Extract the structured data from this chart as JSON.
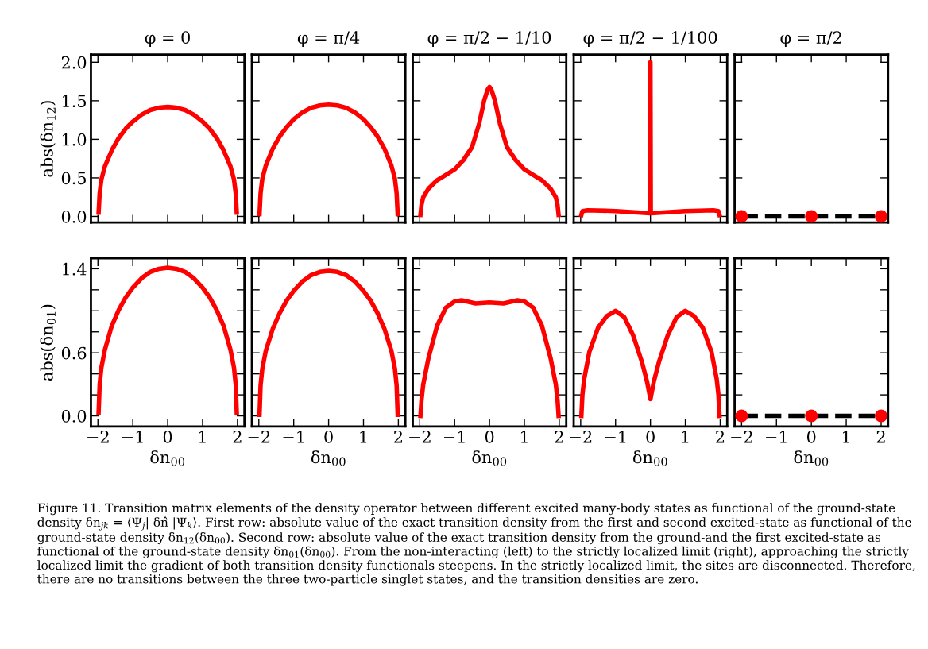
{
  "chart_data": [
    {
      "type": "line",
      "title": "φ = 0",
      "ylabel": "abs(δn$_{12}$)",
      "xlim": [
        -2.2,
        2.2
      ],
      "ylim": [
        -0.08,
        2.1
      ],
      "xticks": [
        {
          "value": -2,
          "label": null
        },
        {
          "value": -1,
          "label": null
        },
        {
          "value": 0,
          "label": null
        },
        {
          "value": 1,
          "label": null
        },
        {
          "value": 2,
          "label": null
        }
      ],
      "yticks": [
        {
          "value": 0,
          "label": "0.0"
        },
        0.5,
        {
          "value": 1,
          "label": "1.0"
        },
        1.5,
        {
          "value": 2,
          "label": "2.0"
        }
      ],
      "tick_labels": "y",
      "line_style": "solid",
      "marker": "none",
      "series": [
        {
          "color": "#ff0000",
          "x": [
            -1.98,
            -1.95,
            -1.9,
            -1.8,
            -1.6,
            -1.4,
            -1.2,
            -1.0,
            -0.75,
            -0.5,
            -0.25,
            0,
            0.25,
            0.5,
            0.75,
            1.0,
            1.2,
            1.4,
            1.6,
            1.8,
            1.9,
            1.95,
            1.98
          ],
          "values": [
            0.05,
            0.3,
            0.48,
            0.65,
            0.86,
            1.02,
            1.14,
            1.23,
            1.32,
            1.38,
            1.41,
            1.42,
            1.41,
            1.38,
            1.32,
            1.23,
            1.14,
            1.02,
            0.86,
            0.65,
            0.48,
            0.3,
            0.05
          ]
        }
      ]
    },
    {
      "type": "line",
      "title": "φ = π/4",
      "xlim": [
        -2.2,
        2.2
      ],
      "ylim": [
        -0.08,
        2.1
      ],
      "xticks": [
        {
          "value": -2,
          "label": null
        },
        {
          "value": -1,
          "label": null
        },
        {
          "value": 0,
          "label": null
        },
        {
          "value": 1,
          "label": null
        },
        {
          "value": 2,
          "label": null
        }
      ],
      "yticks": [
        {
          "value": 0,
          "label": null
        },
        {
          "value": 0.5,
          "label": null
        },
        {
          "value": 1,
          "label": null
        },
        {
          "value": 1.5,
          "label": null
        },
        {
          "value": 2,
          "label": null
        }
      ],
      "tick_labels": false,
      "line_style": "solid",
      "marker": "none",
      "series": [
        {
          "color": "#ff0000",
          "x": [
            -1.98,
            -1.95,
            -1.9,
            -1.8,
            -1.6,
            -1.4,
            -1.2,
            -1.0,
            -0.75,
            -0.5,
            -0.25,
            0,
            0.25,
            0.5,
            0.75,
            1.0,
            1.2,
            1.4,
            1.6,
            1.8,
            1.9,
            1.95,
            1.98
          ],
          "values": [
            0.03,
            0.3,
            0.49,
            0.66,
            0.88,
            1.04,
            1.16,
            1.26,
            1.35,
            1.41,
            1.44,
            1.45,
            1.44,
            1.41,
            1.35,
            1.26,
            1.16,
            1.04,
            0.88,
            0.66,
            0.49,
            0.3,
            0.03
          ]
        }
      ]
    },
    {
      "type": "line",
      "title": "φ = π/2 − 1/10",
      "xlim": [
        -2.2,
        2.2
      ],
      "ylim": [
        -0.08,
        2.1
      ],
      "xticks": [
        {
          "value": -2,
          "label": null
        },
        {
          "value": -1,
          "label": null
        },
        {
          "value": 0,
          "label": null
        },
        {
          "value": 1,
          "label": null
        },
        {
          "value": 2,
          "label": null
        }
      ],
      "yticks": [
        {
          "value": 0,
          "label": null
        },
        {
          "value": 0.5,
          "label": null
        },
        {
          "value": 1,
          "label": null
        },
        {
          "value": 1.5,
          "label": null
        },
        {
          "value": 2,
          "label": null
        }
      ],
      "tick_labels": false,
      "line_style": "solid",
      "marker": "none",
      "series": [
        {
          "color": "#ff0000",
          "x": [
            -1.98,
            -1.95,
            -1.9,
            -1.75,
            -1.5,
            -1.25,
            -1.0,
            -0.75,
            -0.5,
            -0.3,
            -0.15,
            -0.05,
            0,
            0.05,
            0.15,
            0.3,
            0.5,
            0.75,
            1.0,
            1.25,
            1.5,
            1.75,
            1.9,
            1.95,
            1.98
          ],
          "values": [
            0.02,
            0.15,
            0.25,
            0.36,
            0.47,
            0.54,
            0.61,
            0.73,
            0.9,
            1.2,
            1.51,
            1.65,
            1.68,
            1.65,
            1.51,
            1.2,
            0.9,
            0.73,
            0.61,
            0.54,
            0.47,
            0.36,
            0.25,
            0.15,
            0.02
          ]
        }
      ]
    },
    {
      "type": "line",
      "title": "φ = π/2 − 1/100",
      "xlim": [
        -2.2,
        2.2
      ],
      "ylim": [
        -0.08,
        2.1
      ],
      "xticks": [
        {
          "value": -2,
          "label": null
        },
        {
          "value": -1,
          "label": null
        },
        {
          "value": 0,
          "label": null
        },
        {
          "value": 1,
          "label": null
        },
        {
          "value": 2,
          "label": null
        }
      ],
      "yticks": [
        {
          "value": 0,
          "label": null
        },
        {
          "value": 0.5,
          "label": null
        },
        {
          "value": 1,
          "label": null
        },
        {
          "value": 1.5,
          "label": null
        },
        {
          "value": 2,
          "label": null
        }
      ],
      "tick_labels": false,
      "line_style": "solid",
      "marker": "none",
      "series": [
        {
          "color": "#ff0000",
          "x": [
            -1.98,
            -1.95,
            -1.8,
            -1.0,
            -0.01,
            0,
            0.01,
            1.0,
            1.8,
            1.95,
            1.98
          ],
          "values": [
            0.02,
            0.07,
            0.08,
            0.07,
            0.04,
            2.0,
            0.04,
            0.07,
            0.08,
            0.07,
            0.02
          ]
        }
      ]
    },
    {
      "type": "line",
      "title": "φ = π/2",
      "xlim": [
        -2.2,
        2.2
      ],
      "ylim": [
        -0.08,
        2.1
      ],
      "xticks": [
        {
          "value": -2,
          "label": null
        },
        {
          "value": -1,
          "label": null
        },
        {
          "value": 0,
          "label": null
        },
        {
          "value": 1,
          "label": null
        },
        {
          "value": 2,
          "label": null
        }
      ],
      "yticks": [
        {
          "value": 0,
          "label": null
        },
        {
          "value": 0.5,
          "label": null
        },
        {
          "value": 1,
          "label": null
        },
        {
          "value": 1.5,
          "label": null
        },
        {
          "value": 2,
          "label": null
        }
      ],
      "tick_labels": false,
      "series": [
        {
          "type": "line",
          "color": "#000000",
          "line_style": "dashed",
          "x": [
            -2,
            0,
            2
          ],
          "values": [
            0,
            0,
            0
          ]
        },
        {
          "type": "scatter",
          "color": "#ff0000",
          "marker": "circle",
          "x": [
            -2,
            0,
            2
          ],
          "values": [
            0,
            0,
            0
          ]
        }
      ]
    },
    {
      "type": "line",
      "xlabel": "δn$_{00}$",
      "ylabel": "abs(δn$_{01}$)",
      "xlim": [
        -2.2,
        2.2
      ],
      "ylim": [
        -0.1,
        1.5
      ],
      "xticks": [
        -2,
        -1,
        0,
        1,
        2
      ],
      "yticks": [
        {
          "value": 0,
          "label": "0.0"
        },
        {
          "value": 0.2,
          "label": null
        },
        {
          "value": 0.4,
          "label": null
        },
        0.6,
        {
          "value": 0.8,
          "label": null
        },
        {
          "value": 1.0,
          "label": null
        },
        {
          "value": 1.2,
          "label": null
        },
        1.4
      ],
      "line_style": "solid",
      "marker": "none",
      "series": [
        {
          "color": "#ff0000",
          "x": [
            -1.98,
            -1.95,
            -1.9,
            -1.8,
            -1.6,
            -1.4,
            -1.2,
            -1.0,
            -0.75,
            -0.5,
            -0.25,
            0,
            0.25,
            0.5,
            0.75,
            1.0,
            1.2,
            1.4,
            1.6,
            1.8,
            1.9,
            1.95,
            1.98
          ],
          "values": [
            0.03,
            0.3,
            0.46,
            0.63,
            0.86,
            1.01,
            1.13,
            1.22,
            1.31,
            1.37,
            1.4,
            1.41,
            1.4,
            1.37,
            1.31,
            1.22,
            1.13,
            1.01,
            0.86,
            0.63,
            0.46,
            0.3,
            0.03
          ]
        }
      ]
    },
    {
      "type": "line",
      "xlabel": "δn$_{00}$",
      "xlim": [
        -2.2,
        2.2
      ],
      "ylim": [
        -0.1,
        1.5
      ],
      "xticks": [
        -2,
        -1,
        0,
        1,
        2
      ],
      "yticks": [
        {
          "value": 0,
          "label": null
        },
        {
          "value": 0.2,
          "label": null
        },
        {
          "value": 0.4,
          "label": null
        },
        {
          "value": 0.6,
          "label": null
        },
        {
          "value": 0.8,
          "label": null
        },
        {
          "value": 1.0,
          "label": null
        },
        {
          "value": 1.2,
          "label": null
        },
        {
          "value": 1.4,
          "label": null
        }
      ],
      "tick_labels": "x",
      "line_style": "solid",
      "marker": "none",
      "series": [
        {
          "color": "#ff0000",
          "x": [
            -1.98,
            -1.95,
            -1.9,
            -1.8,
            -1.6,
            -1.4,
            -1.2,
            -1.0,
            -0.75,
            -0.5,
            -0.25,
            0,
            0.25,
            0.5,
            0.75,
            1.0,
            1.2,
            1.4,
            1.6,
            1.8,
            1.9,
            1.95,
            1.98
          ],
          "values": [
            0.01,
            0.29,
            0.45,
            0.62,
            0.83,
            0.98,
            1.1,
            1.19,
            1.28,
            1.34,
            1.37,
            1.38,
            1.37,
            1.34,
            1.28,
            1.19,
            1.1,
            0.98,
            0.83,
            0.62,
            0.45,
            0.29,
            0.01
          ]
        }
      ]
    },
    {
      "type": "line",
      "xlabel": "δn$_{00}$",
      "xlim": [
        -2.2,
        2.2
      ],
      "ylim": [
        -0.1,
        1.5
      ],
      "xticks": [
        -2,
        -1,
        0,
        1,
        2
      ],
      "yticks": [
        {
          "value": 0,
          "label": null
        },
        {
          "value": 0.2,
          "label": null
        },
        {
          "value": 0.4,
          "label": null
        },
        {
          "value": 0.6,
          "label": null
        },
        {
          "value": 0.8,
          "label": null
        },
        {
          "value": 1.0,
          "label": null
        },
        {
          "value": 1.2,
          "label": null
        },
        {
          "value": 1.4,
          "label": null
        }
      ],
      "tick_labels": "x",
      "line_style": "solid",
      "marker": "none",
      "series": [
        {
          "color": "#ff0000",
          "x": [
            -1.98,
            -1.95,
            -1.9,
            -1.75,
            -1.5,
            -1.25,
            -1.0,
            -0.8,
            -0.4,
            0,
            0.4,
            0.8,
            1.0,
            1.25,
            1.5,
            1.75,
            1.9,
            1.95,
            1.98
          ],
          "values": [
            0.0,
            0.15,
            0.3,
            0.55,
            0.86,
            1.03,
            1.09,
            1.1,
            1.07,
            1.08,
            1.07,
            1.1,
            1.09,
            1.03,
            0.86,
            0.55,
            0.3,
            0.15,
            0.0
          ]
        }
      ]
    },
    {
      "type": "line",
      "xlabel": "δn$_{00}$",
      "xlim": [
        -2.2,
        2.2
      ],
      "ylim": [
        -0.1,
        1.5
      ],
      "xticks": [
        -2,
        -1,
        0,
        1,
        2
      ],
      "yticks": [
        {
          "value": 0,
          "label": null
        },
        {
          "value": 0.2,
          "label": null
        },
        {
          "value": 0.4,
          "label": null
        },
        {
          "value": 0.6,
          "label": null
        },
        {
          "value": 0.8,
          "label": null
        },
        {
          "value": 1.0,
          "label": null
        },
        {
          "value": 1.2,
          "label": null
        },
        {
          "value": 1.4,
          "label": null
        }
      ],
      "tick_labels": "x",
      "line_style": "solid",
      "marker": "none",
      "series": [
        {
          "color": "#ff0000",
          "x": [
            -1.98,
            -1.95,
            -1.9,
            -1.75,
            -1.5,
            -1.25,
            -1.0,
            -0.75,
            -0.5,
            -0.25,
            -0.1,
            0,
            0.1,
            0.25,
            0.5,
            0.75,
            1.0,
            1.25,
            1.5,
            1.75,
            1.9,
            1.95,
            1.98
          ],
          "values": [
            0.0,
            0.2,
            0.35,
            0.61,
            0.84,
            0.95,
            1.0,
            0.94,
            0.77,
            0.52,
            0.33,
            0.16,
            0.33,
            0.52,
            0.77,
            0.94,
            1.0,
            0.95,
            0.84,
            0.61,
            0.35,
            0.2,
            0.0
          ]
        }
      ]
    },
    {
      "type": "line",
      "xlabel": "δn$_{00}$",
      "xlim": [
        -2.2,
        2.2
      ],
      "ylim": [
        -0.1,
        1.5
      ],
      "xticks": [
        -2,
        -1,
        0,
        1,
        2
      ],
      "yticks": [
        {
          "value": 0,
          "label": null
        },
        {
          "value": 0.2,
          "label": null
        },
        {
          "value": 0.4,
          "label": null
        },
        {
          "value": 0.6,
          "label": null
        },
        {
          "value": 0.8,
          "label": null
        },
        {
          "value": 1.0,
          "label": null
        },
        {
          "value": 1.2,
          "label": null
        },
        {
          "value": 1.4,
          "label": null
        }
      ],
      "tick_labels": "x",
      "series": [
        {
          "type": "line",
          "color": "#000000",
          "line_style": "dashed",
          "x": [
            -2,
            0,
            2
          ],
          "values": [
            0,
            0,
            0
          ]
        },
        {
          "type": "scatter",
          "color": "#ff0000",
          "marker": "circle",
          "x": [
            -2,
            0,
            2
          ],
          "values": [
            0,
            0,
            0
          ]
        }
      ],
      "annotations": [
        "Figure 11. Transition matrix elements of the density operator between different excited many-body states as functional of the ground-state density δn$_{jk}$ = ⟨Ψ$_{j}$| δn̂ |Ψ$_{k}$⟩. First row: absolute value of the exact transition density from the first and second excited-state as functional of the ground-state density δn$_{12}$(δn$_{00}$). Second row: absolute value of the exact transition density from the ground-and the first excited-state as functional of the ground-state density δn$_{01}$(δn$_{00}$). From the non-interacting (left) to the strictly localized limit (right), approaching the strictly localized limit the gradient of both transition density functionals steepens. In the strictly localized limit, the sites are disconnected. Therefore, there are no transitions between the three two-particle singlet states, and the transition densities are zero."
      ]
    }
  ]
}
